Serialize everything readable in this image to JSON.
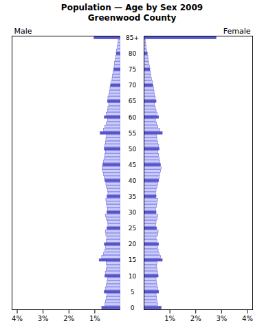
{
  "chart_data": {
    "type": "bar",
    "orientation": "horizontal",
    "title": "Population — Age by Sex 2009",
    "subtitle": "Greenwood County",
    "categories": [
      "0",
      null,
      null,
      null,
      null,
      "5",
      null,
      null,
      null,
      null,
      "10",
      null,
      null,
      null,
      null,
      "15",
      null,
      null,
      null,
      null,
      "20",
      null,
      null,
      null,
      null,
      "25",
      null,
      null,
      null,
      null,
      "30",
      null,
      null,
      null,
      null,
      "35",
      null,
      null,
      null,
      null,
      "40",
      null,
      null,
      null,
      null,
      "45",
      null,
      null,
      null,
      null,
      "50",
      null,
      null,
      null,
      null,
      "55",
      null,
      null,
      null,
      null,
      "60",
      null,
      null,
      null,
      null,
      "65",
      null,
      null,
      null,
      null,
      "70",
      null,
      null,
      null,
      null,
      "75",
      null,
      null,
      null,
      null,
      "80",
      null,
      null,
      null,
      null,
      "85+"
    ],
    "series": [
      {
        "name": "Male",
        "color": "#5555cc",
        "colors": [
          "#5555cc",
          "#ccccff",
          "#ccccff",
          "#ccccff",
          "#ccccff",
          "#5555cc",
          "#ccccff",
          "#ccccff",
          "#ccccff",
          "#ccccff",
          "#5555cc",
          "#ccccff",
          "#ccccff",
          "#ccccff",
          "#ccccff",
          "#5555cc",
          "#ccccff",
          "#ccccff",
          "#ccccff",
          "#ccccff",
          "#5555cc",
          "#ccccff",
          "#ccccff",
          "#ccccff",
          "#ccccff",
          "#5555cc",
          "#ccccff",
          "#ccccff",
          "#ccccff",
          "#ccccff",
          "#5555cc",
          "#ccccff",
          "#ccccff",
          "#ccccff",
          "#ccccff",
          "#5555cc",
          "#ccccff",
          "#ccccff",
          "#ccccff",
          "#ccccff",
          "#5555cc",
          "#ccccff",
          "#ccccff",
          "#ccccff",
          "#ccccff",
          "#5555cc",
          "#ccccff",
          "#ccccff",
          "#ccccff",
          "#ccccff",
          "#5555cc",
          "#ccccff",
          "#ccccff",
          "#ccccff",
          "#ccccff",
          "#5555cc",
          "#ccccff",
          "#ccccff",
          "#ccccff",
          "#ccccff",
          "#5555cc",
          "#ccccff",
          "#ccccff",
          "#ccccff",
          "#ccccff",
          "#5555cc",
          "#ccccff",
          "#ccccff",
          "#ccccff",
          "#ccccff",
          "#5555cc",
          "#ccccff",
          "#ccccff",
          "#ccccff",
          "#ccccff",
          "#5555cc",
          "#ccccff",
          "#ccccff",
          "#ccccff",
          "#ccccff",
          "#5555cc",
          "#ccccff",
          "#ccccff",
          "#ccccff",
          "#ccccff",
          "#5555cc"
        ],
        "values": [
          0.72,
          0.6,
          0.58,
          0.55,
          0.52,
          0.62,
          0.58,
          0.55,
          0.52,
          0.5,
          0.6,
          0.58,
          0.55,
          0.52,
          0.55,
          0.82,
          0.72,
          0.65,
          0.6,
          0.58,
          0.62,
          0.55,
          0.52,
          0.56,
          0.58,
          0.52,
          0.48,
          0.5,
          0.54,
          0.58,
          0.52,
          0.5,
          0.52,
          0.55,
          0.56,
          0.52,
          0.48,
          0.5,
          0.54,
          0.56,
          0.6,
          0.62,
          0.65,
          0.68,
          0.7,
          0.68,
          0.65,
          0.62,
          0.6,
          0.58,
          0.62,
          0.6,
          0.58,
          0.56,
          0.54,
          0.78,
          0.65,
          0.6,
          0.55,
          0.5,
          0.62,
          0.55,
          0.5,
          0.48,
          0.45,
          0.5,
          0.48,
          0.45,
          0.42,
          0.4,
          0.38,
          0.35,
          0.32,
          0.3,
          0.28,
          0.26,
          0.24,
          0.22,
          0.2,
          0.18,
          0.16,
          0.14,
          0.12,
          0.1,
          0.08,
          1.02
        ]
      },
      {
        "name": "Female",
        "color": "#5555cc",
        "colors": [
          "#5555cc",
          "#ccccff",
          "#ccccff",
          "#ccccff",
          "#ccccff",
          "#5555cc",
          "#ccccff",
          "#ccccff",
          "#ccccff",
          "#ccccff",
          "#5555cc",
          "#ccccff",
          "#ccccff",
          "#ccccff",
          "#ccccff",
          "#5555cc",
          "#ccccff",
          "#ccccff",
          "#ccccff",
          "#ccccff",
          "#5555cc",
          "#ccccff",
          "#ccccff",
          "#ccccff",
          "#ccccff",
          "#5555cc",
          "#ccccff",
          "#ccccff",
          "#ccccff",
          "#ccccff",
          "#5555cc",
          "#ccccff",
          "#ccccff",
          "#ccccff",
          "#ccccff",
          "#5555cc",
          "#ccccff",
          "#ccccff",
          "#ccccff",
          "#ccccff",
          "#5555cc",
          "#ccccff",
          "#ccccff",
          "#ccccff",
          "#ccccff",
          "#5555cc",
          "#ccccff",
          "#ccccff",
          "#ccccff",
          "#ccccff",
          "#5555cc",
          "#ccccff",
          "#ccccff",
          "#ccccff",
          "#ccccff",
          "#5555cc",
          "#ccccff",
          "#ccccff",
          "#ccccff",
          "#ccccff",
          "#5555cc",
          "#ccccff",
          "#ccccff",
          "#ccccff",
          "#ccccff",
          "#5555cc",
          "#ccccff",
          "#ccccff",
          "#ccccff",
          "#ccccff",
          "#5555cc",
          "#ccccff",
          "#ccccff",
          "#ccccff",
          "#ccccff",
          "#5555cc",
          "#ccccff",
          "#ccccff",
          "#ccccff",
          "#ccccff",
          "#5555cc",
          "#ccccff",
          "#ccccff",
          "#ccccff",
          "#ccccff",
          "#5555cc"
        ],
        "values": [
          0.68,
          0.55,
          0.52,
          0.5,
          0.48,
          0.58,
          0.55,
          0.52,
          0.5,
          0.48,
          0.56,
          0.54,
          0.52,
          0.5,
          0.52,
          0.72,
          0.65,
          0.6,
          0.56,
          0.54,
          0.58,
          0.52,
          0.48,
          0.54,
          0.56,
          0.5,
          0.46,
          0.48,
          0.52,
          0.55,
          0.48,
          0.46,
          0.5,
          0.52,
          0.54,
          0.48,
          0.46,
          0.48,
          0.52,
          0.54,
          0.58,
          0.6,
          0.62,
          0.65,
          0.68,
          0.65,
          0.62,
          0.6,
          0.58,
          0.55,
          0.6,
          0.58,
          0.55,
          0.52,
          0.5,
          0.72,
          0.62,
          0.55,
          0.5,
          0.46,
          0.58,
          0.52,
          0.48,
          0.45,
          0.42,
          0.48,
          0.45,
          0.42,
          0.4,
          0.38,
          0.36,
          0.34,
          0.3,
          0.28,
          0.26,
          0.24,
          0.22,
          0.2,
          0.18,
          0.16,
          0.14,
          0.12,
          0.1,
          0.08,
          0.06,
          2.8
        ]
      }
    ],
    "xlim": [
      0,
      4.2
    ],
    "xticks": [
      {
        "value": 1,
        "label": "1%"
      },
      {
        "value": 2,
        "label": "2%"
      },
      {
        "value": 3,
        "label": "3%"
      },
      {
        "value": 4,
        "label": "4%"
      }
    ],
    "grid": false
  }
}
